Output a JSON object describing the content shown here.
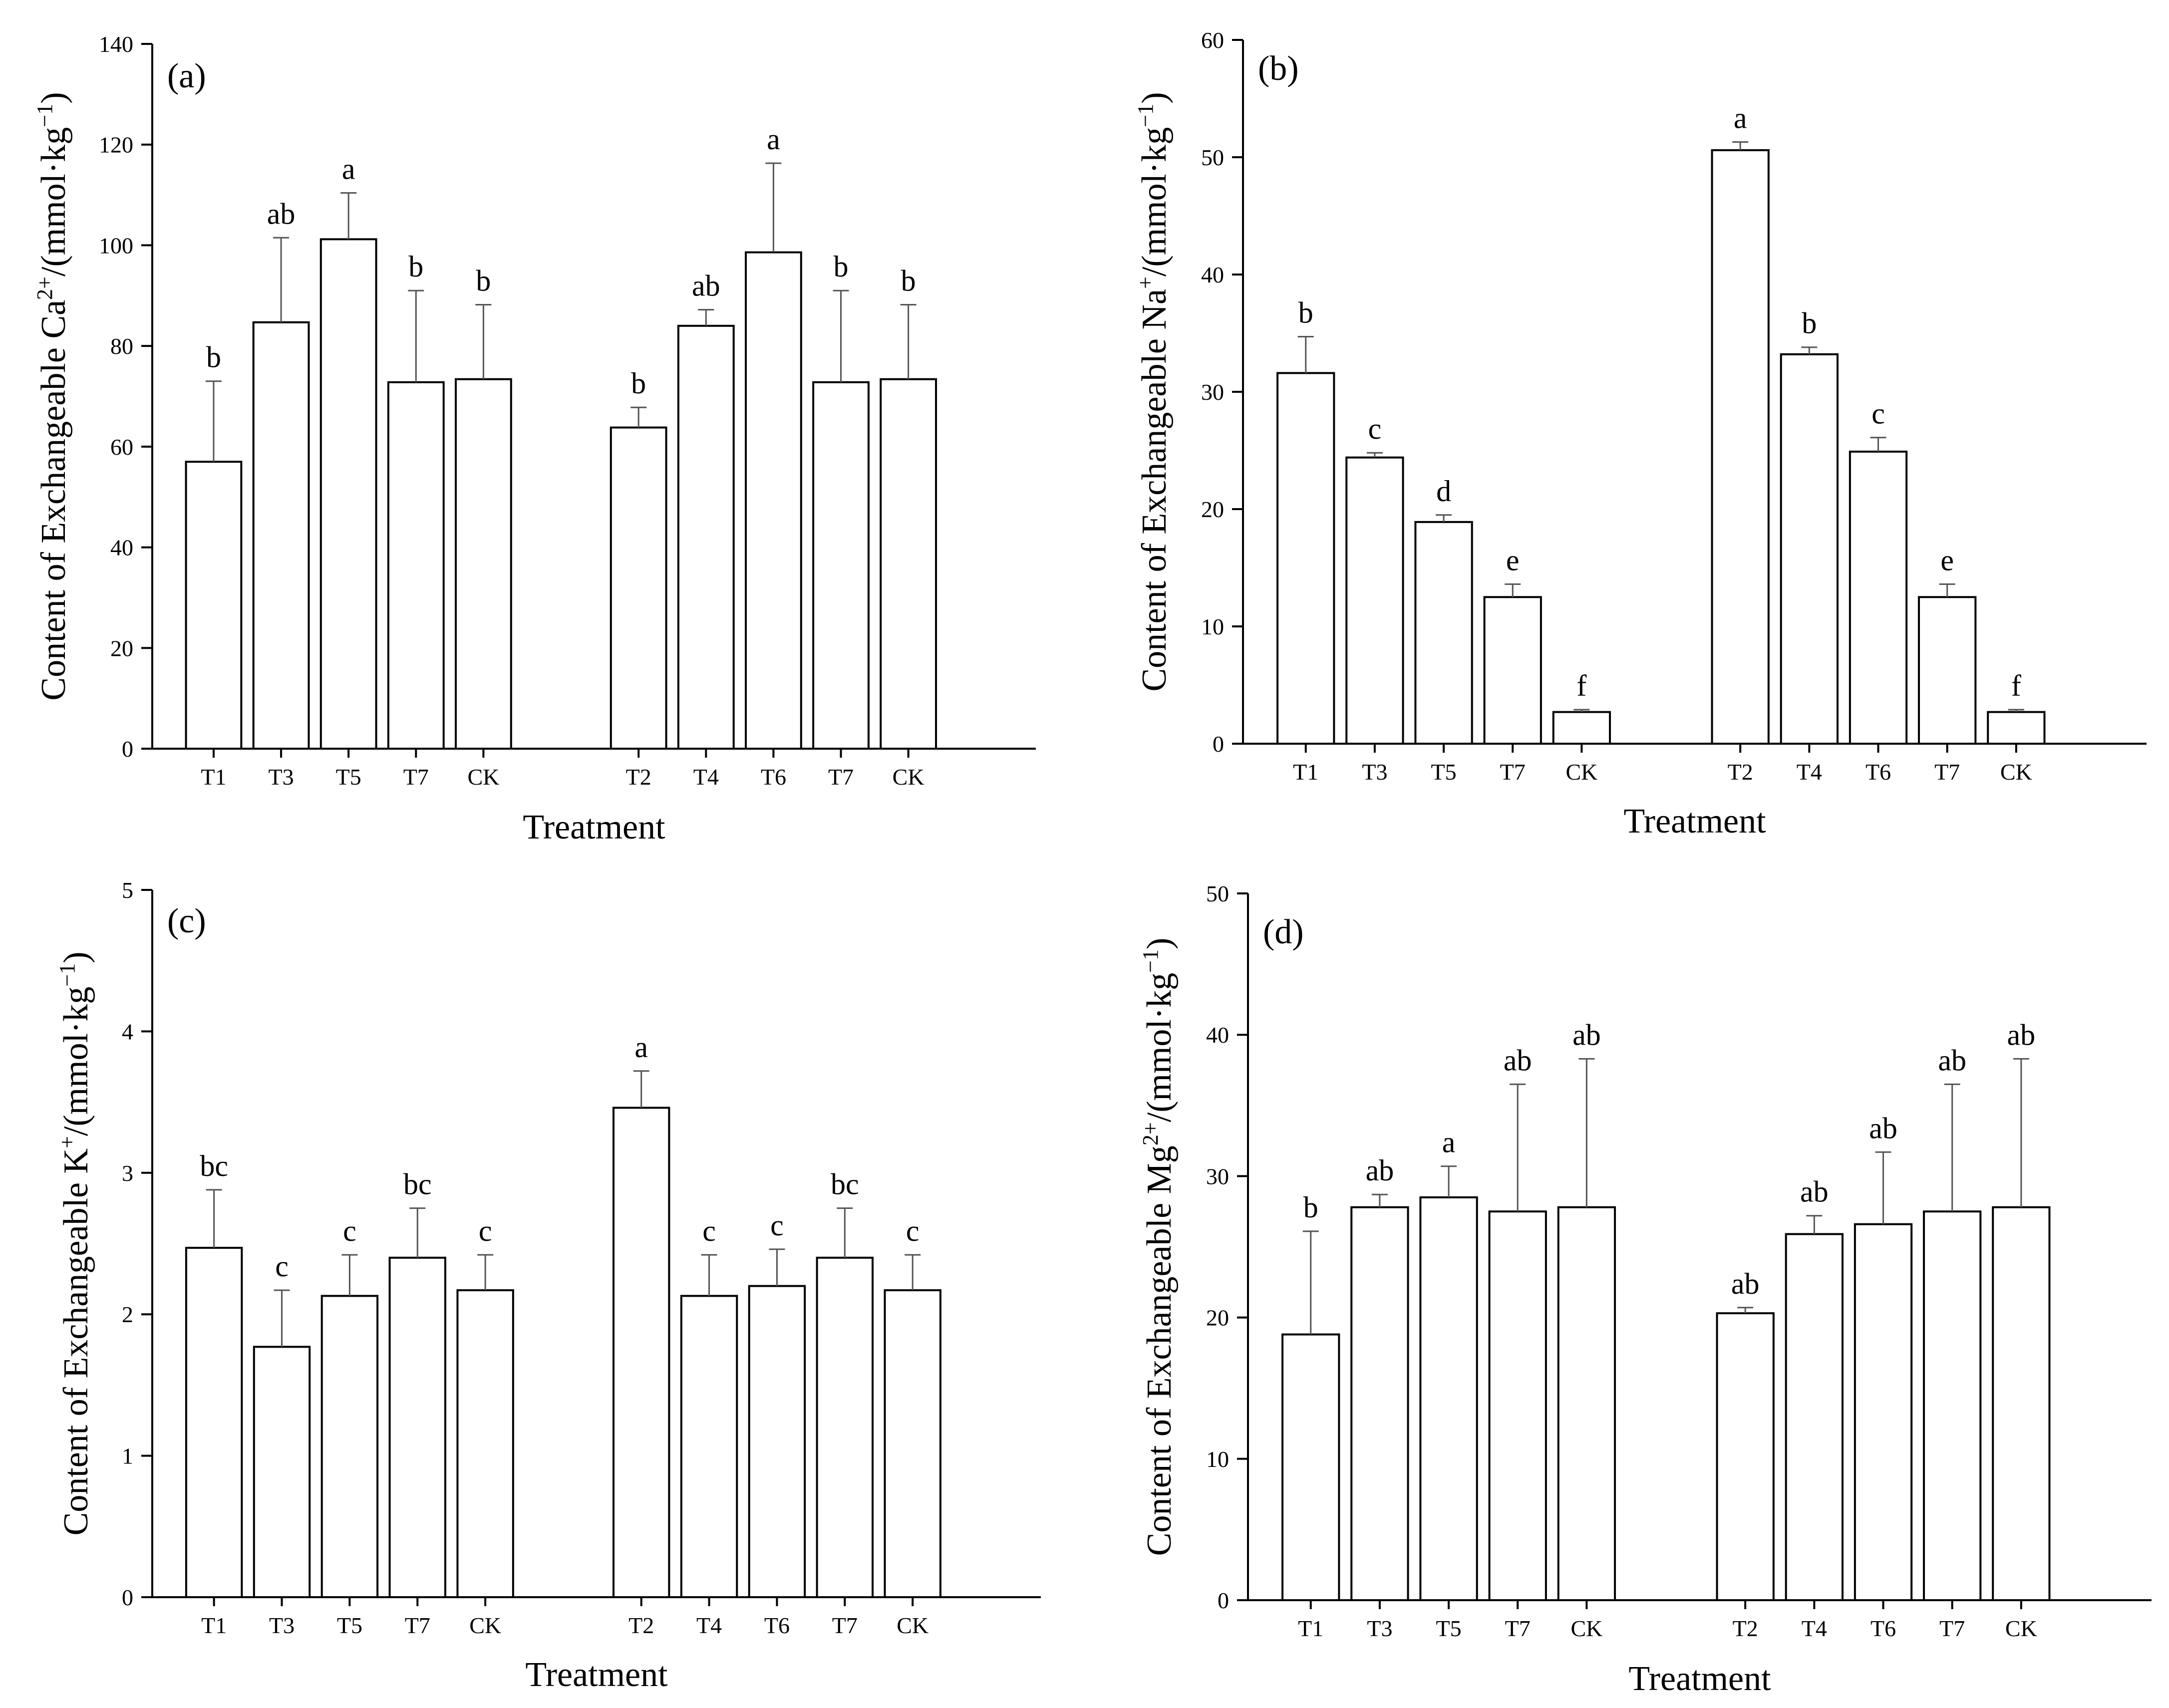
{
  "chart_data": [
    {
      "type": "bar",
      "panel_label": "(a)",
      "title": "",
      "xlabel": "Treatment",
      "ylabel": {
        "prefix": "Content of Exchangeable Ca",
        "ion_sup": "2+",
        "unit_prefix": "/(mmol·kg",
        "unit_sup": "−1",
        "unit_suffix": ")"
      },
      "ylim": [
        0,
        140
      ],
      "yticks": [
        "0",
        "20",
        "40",
        "60",
        "80",
        "100",
        "120",
        "140"
      ],
      "categories": [
        "T1",
        "T3",
        "T5",
        "T7",
        "CK",
        "T2",
        "T4",
        "T6",
        "T7",
        "CK"
      ],
      "values": [
        57,
        84.7,
        101.2,
        72.8,
        73.4,
        63.8,
        84,
        98.6,
        72.8,
        73.4
      ],
      "errors": [
        16,
        16.8,
        9.2,
        18.2,
        14.8,
        4,
        3.2,
        17.7,
        18.2,
        14.8
      ],
      "letters": [
        "b",
        "ab",
        "a",
        "b",
        "b",
        "b",
        "ab",
        "a",
        "b",
        "b"
      ],
      "grid": false
    },
    {
      "type": "bar",
      "panel_label": "(b)",
      "title": "",
      "xlabel": "Treatment",
      "ylabel": {
        "prefix": "Content of Exchangeable Na",
        "ion_sup": "+",
        "unit_prefix": "/(mmol·kg",
        "unit_sup": "−1",
        "unit_suffix": ")"
      },
      "ylim": [
        0,
        60
      ],
      "yticks": [
        "0",
        "10",
        "20",
        "30",
        "40",
        "50",
        "60"
      ],
      "categories": [
        "T1",
        "T3",
        "T5",
        "T7",
        "CK",
        "T2",
        "T4",
        "T6",
        "T7",
        "CK"
      ],
      "values": [
        31.6,
        24.4,
        18.9,
        12.5,
        2.7,
        50.6,
        33.2,
        24.9,
        12.5,
        2.7
      ],
      "errors": [
        3.1,
        0.4,
        0.6,
        1.1,
        0.2,
        0.7,
        0.6,
        1.2,
        1.1,
        0.2
      ],
      "letters": [
        "b",
        "c",
        "d",
        "e",
        "f",
        "a",
        "b",
        "c",
        "e",
        "f"
      ],
      "grid": false
    },
    {
      "type": "bar",
      "panel_label": "(c)",
      "title": "",
      "xlabel": "Treatment",
      "ylabel": {
        "prefix": "Content of Exchangeable K",
        "ion_sup": "+",
        "unit_prefix": "/(mmol·kg",
        "unit_sup": "−1",
        "unit_suffix": ")"
      },
      "ylim": [
        0,
        5
      ],
      "yticks": [
        "0",
        "1",
        "2",
        "3",
        "4",
        "5"
      ],
      "categories": [
        "T1",
        "T3",
        "T5",
        "T7",
        "CK",
        "T2",
        "T4",
        "T6",
        "T7",
        "CK"
      ],
      "values": [
        2.47,
        1.77,
        2.13,
        2.4,
        2.17,
        3.46,
        2.13,
        2.2,
        2.4,
        2.17
      ],
      "errors": [
        0.41,
        0.4,
        0.29,
        0.35,
        0.25,
        0.26,
        0.29,
        0.26,
        0.35,
        0.25
      ],
      "letters": [
        "bc",
        "c",
        "c",
        "bc",
        "c",
        "a",
        "c",
        "c",
        "bc",
        "c"
      ],
      "grid": false
    },
    {
      "type": "bar",
      "panel_label": "(d)",
      "title": "",
      "xlabel": "Treatment",
      "ylabel": {
        "prefix": "Content of Exchangeable Mg",
        "ion_sup": "2+",
        "unit_prefix": "/(mmol·kg",
        "unit_sup": "−1",
        "unit_suffix": ")"
      },
      "ylim": [
        0,
        50
      ],
      "yticks": [
        "0",
        "10",
        "20",
        "30",
        "40",
        "50"
      ],
      "categories": [
        "T1",
        "T3",
        "T5",
        "T7",
        "CK",
        "T2",
        "T4",
        "T6",
        "T7",
        "CK"
      ],
      "values": [
        18.8,
        27.8,
        28.5,
        27.5,
        27.8,
        20.3,
        25.9,
        26.6,
        27.5,
        27.8
      ],
      "errors": [
        7.3,
        0.9,
        2.2,
        9,
        10.5,
        0.4,
        1.3,
        5.1,
        9,
        10.5
      ],
      "letters": [
        "b",
        "ab",
        "a",
        "ab",
        "ab",
        "ab",
        "ab",
        "ab",
        "ab",
        "ab"
      ],
      "grid": false
    }
  ]
}
